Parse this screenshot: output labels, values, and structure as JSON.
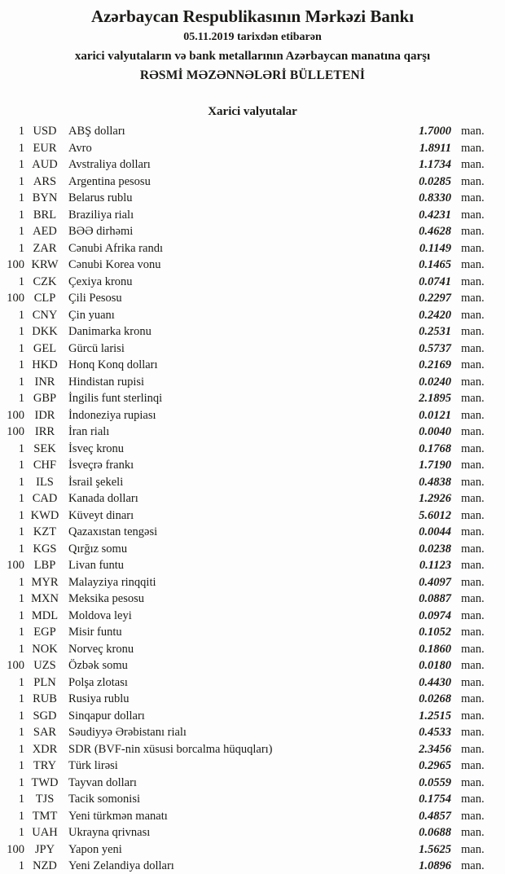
{
  "header": {
    "bank_name": "Azərbaycan Respublikasının Mərkəzi Bankı",
    "date_line": "05.11.2019 tarixdən etibarən",
    "subtitle_line": "xarici valyutaların və bank metallarının Azərbaycan manatına qarşı",
    "bulletin_title": "RƏSMİ MƏZƏNNƏLƏRİ BÜLLETENİ"
  },
  "section": {
    "title": "Xarici valyutalar"
  },
  "table": {
    "unit_suffix": "man.",
    "rows": [
      {
        "qty": "1",
        "code": "USD",
        "name": "ABŞ dolları",
        "rate": "1.7000"
      },
      {
        "qty": "1",
        "code": "EUR",
        "name": "Avro",
        "rate": "1.8911"
      },
      {
        "qty": "1",
        "code": "AUD",
        "name": "Avstraliya dolları",
        "rate": "1.1734"
      },
      {
        "qty": "1",
        "code": "ARS",
        "name": "Argentina pesosu",
        "rate": "0.0285"
      },
      {
        "qty": "1",
        "code": "BYN",
        "name": "Belarus rublu",
        "rate": "0.8330"
      },
      {
        "qty": "1",
        "code": "BRL",
        "name": "Braziliya rialı",
        "rate": "0.4231"
      },
      {
        "qty": "1",
        "code": "AED",
        "name": "BƏƏ dirhəmi",
        "rate": "0.4628"
      },
      {
        "qty": "1",
        "code": "ZAR",
        "name": "Cənubi Afrika randı",
        "rate": "0.1149"
      },
      {
        "qty": "100",
        "code": "KRW",
        "name": "Cənubi Korea vonu",
        "rate": "0.1465"
      },
      {
        "qty": "1",
        "code": "CZK",
        "name": "Çexiya kronu",
        "rate": "0.0741"
      },
      {
        "qty": "100",
        "code": "CLP",
        "name": "Çili Pesosu",
        "rate": "0.2297"
      },
      {
        "qty": "1",
        "code": "CNY",
        "name": "Çin yuanı",
        "rate": "0.2420"
      },
      {
        "qty": "1",
        "code": "DKK",
        "name": "Danimarka kronu",
        "rate": "0.2531"
      },
      {
        "qty": "1",
        "code": "GEL",
        "name": "Gürcü larisi",
        "rate": "0.5737"
      },
      {
        "qty": "1",
        "code": "HKD",
        "name": "Honq Konq dolları",
        "rate": "0.2169"
      },
      {
        "qty": "1",
        "code": "INR",
        "name": "Hindistan rupisi",
        "rate": "0.0240"
      },
      {
        "qty": "1",
        "code": "GBP",
        "name": "İngilis funt sterlinqi",
        "rate": "2.1895"
      },
      {
        "qty": "100",
        "code": "IDR",
        "name": "İndoneziya rupiası",
        "rate": "0.0121"
      },
      {
        "qty": "100",
        "code": "IRR",
        "name": "İran rialı",
        "rate": "0.0040"
      },
      {
        "qty": "1",
        "code": "SEK",
        "name": "İsveç kronu",
        "rate": "0.1768"
      },
      {
        "qty": "1",
        "code": "CHF",
        "name": "İsveçrə frankı",
        "rate": "1.7190"
      },
      {
        "qty": "1",
        "code": "ILS",
        "name": "İsrail şekeli",
        "rate": "0.4838"
      },
      {
        "qty": "1",
        "code": "CAD",
        "name": "Kanada dolları",
        "rate": "1.2926"
      },
      {
        "qty": "1",
        "code": "KWD",
        "name": "Küveyt dinarı",
        "rate": "5.6012"
      },
      {
        "qty": "1",
        "code": "KZT",
        "name": "Qazaxıstan tengəsi",
        "rate": "0.0044"
      },
      {
        "qty": "1",
        "code": "KGS",
        "name": "Qırğız somu",
        "rate": "0.0238"
      },
      {
        "qty": "100",
        "code": "LBP",
        "name": "Livan funtu",
        "rate": "0.1123"
      },
      {
        "qty": "1",
        "code": "MYR",
        "name": "Malayziya rinqqiti",
        "rate": "0.4097"
      },
      {
        "qty": "1",
        "code": "MXN",
        "name": "Meksika pesosu",
        "rate": "0.0887"
      },
      {
        "qty": "1",
        "code": "MDL",
        "name": "Moldova leyi",
        "rate": "0.0974"
      },
      {
        "qty": "1",
        "code": "EGP",
        "name": "Misir funtu",
        "rate": "0.1052"
      },
      {
        "qty": "1",
        "code": "NOK",
        "name": "Norveç kronu",
        "rate": "0.1860"
      },
      {
        "qty": "100",
        "code": "UZS",
        "name": "Özbək somu",
        "rate": "0.0180"
      },
      {
        "qty": "1",
        "code": "PLN",
        "name": "Polşa zlotası",
        "rate": "0.4430"
      },
      {
        "qty": "1",
        "code": "RUB",
        "name": "Rusiya rublu",
        "rate": "0.0268"
      },
      {
        "qty": "1",
        "code": "SGD",
        "name": "Sinqapur dolları",
        "rate": "1.2515"
      },
      {
        "qty": "1",
        "code": "SAR",
        "name": "Səudiyyə Ərəbistanı rialı",
        "rate": "0.4533"
      },
      {
        "qty": "1",
        "code": "XDR",
        "name": "SDR (BVF-nin xüsusi borcalma hüquqları)",
        "rate": "2.3456"
      },
      {
        "qty": "1",
        "code": "TRY",
        "name": "Türk lirəsi",
        "rate": "0.2965"
      },
      {
        "qty": "1",
        "code": "TWD",
        "name": "Tayvan dolları",
        "rate": "0.0559"
      },
      {
        "qty": "1",
        "code": "TJS",
        "name": "Tacik somonisi",
        "rate": "0.1754"
      },
      {
        "qty": "1",
        "code": "TMT",
        "name": "Yeni türkmən manatı",
        "rate": "0.4857"
      },
      {
        "qty": "1",
        "code": "UAH",
        "name": "Ukrayna qrivnası",
        "rate": "0.0688"
      },
      {
        "qty": "100",
        "code": "JPY",
        "name": "Yapon yeni",
        "rate": "1.5625"
      },
      {
        "qty": "1",
        "code": "NZD",
        "name": "Yeni Zelandiya dolları",
        "rate": "1.0896"
      }
    ]
  },
  "colors": {
    "text": "#1b1a17",
    "background": "#fdfdfd"
  }
}
